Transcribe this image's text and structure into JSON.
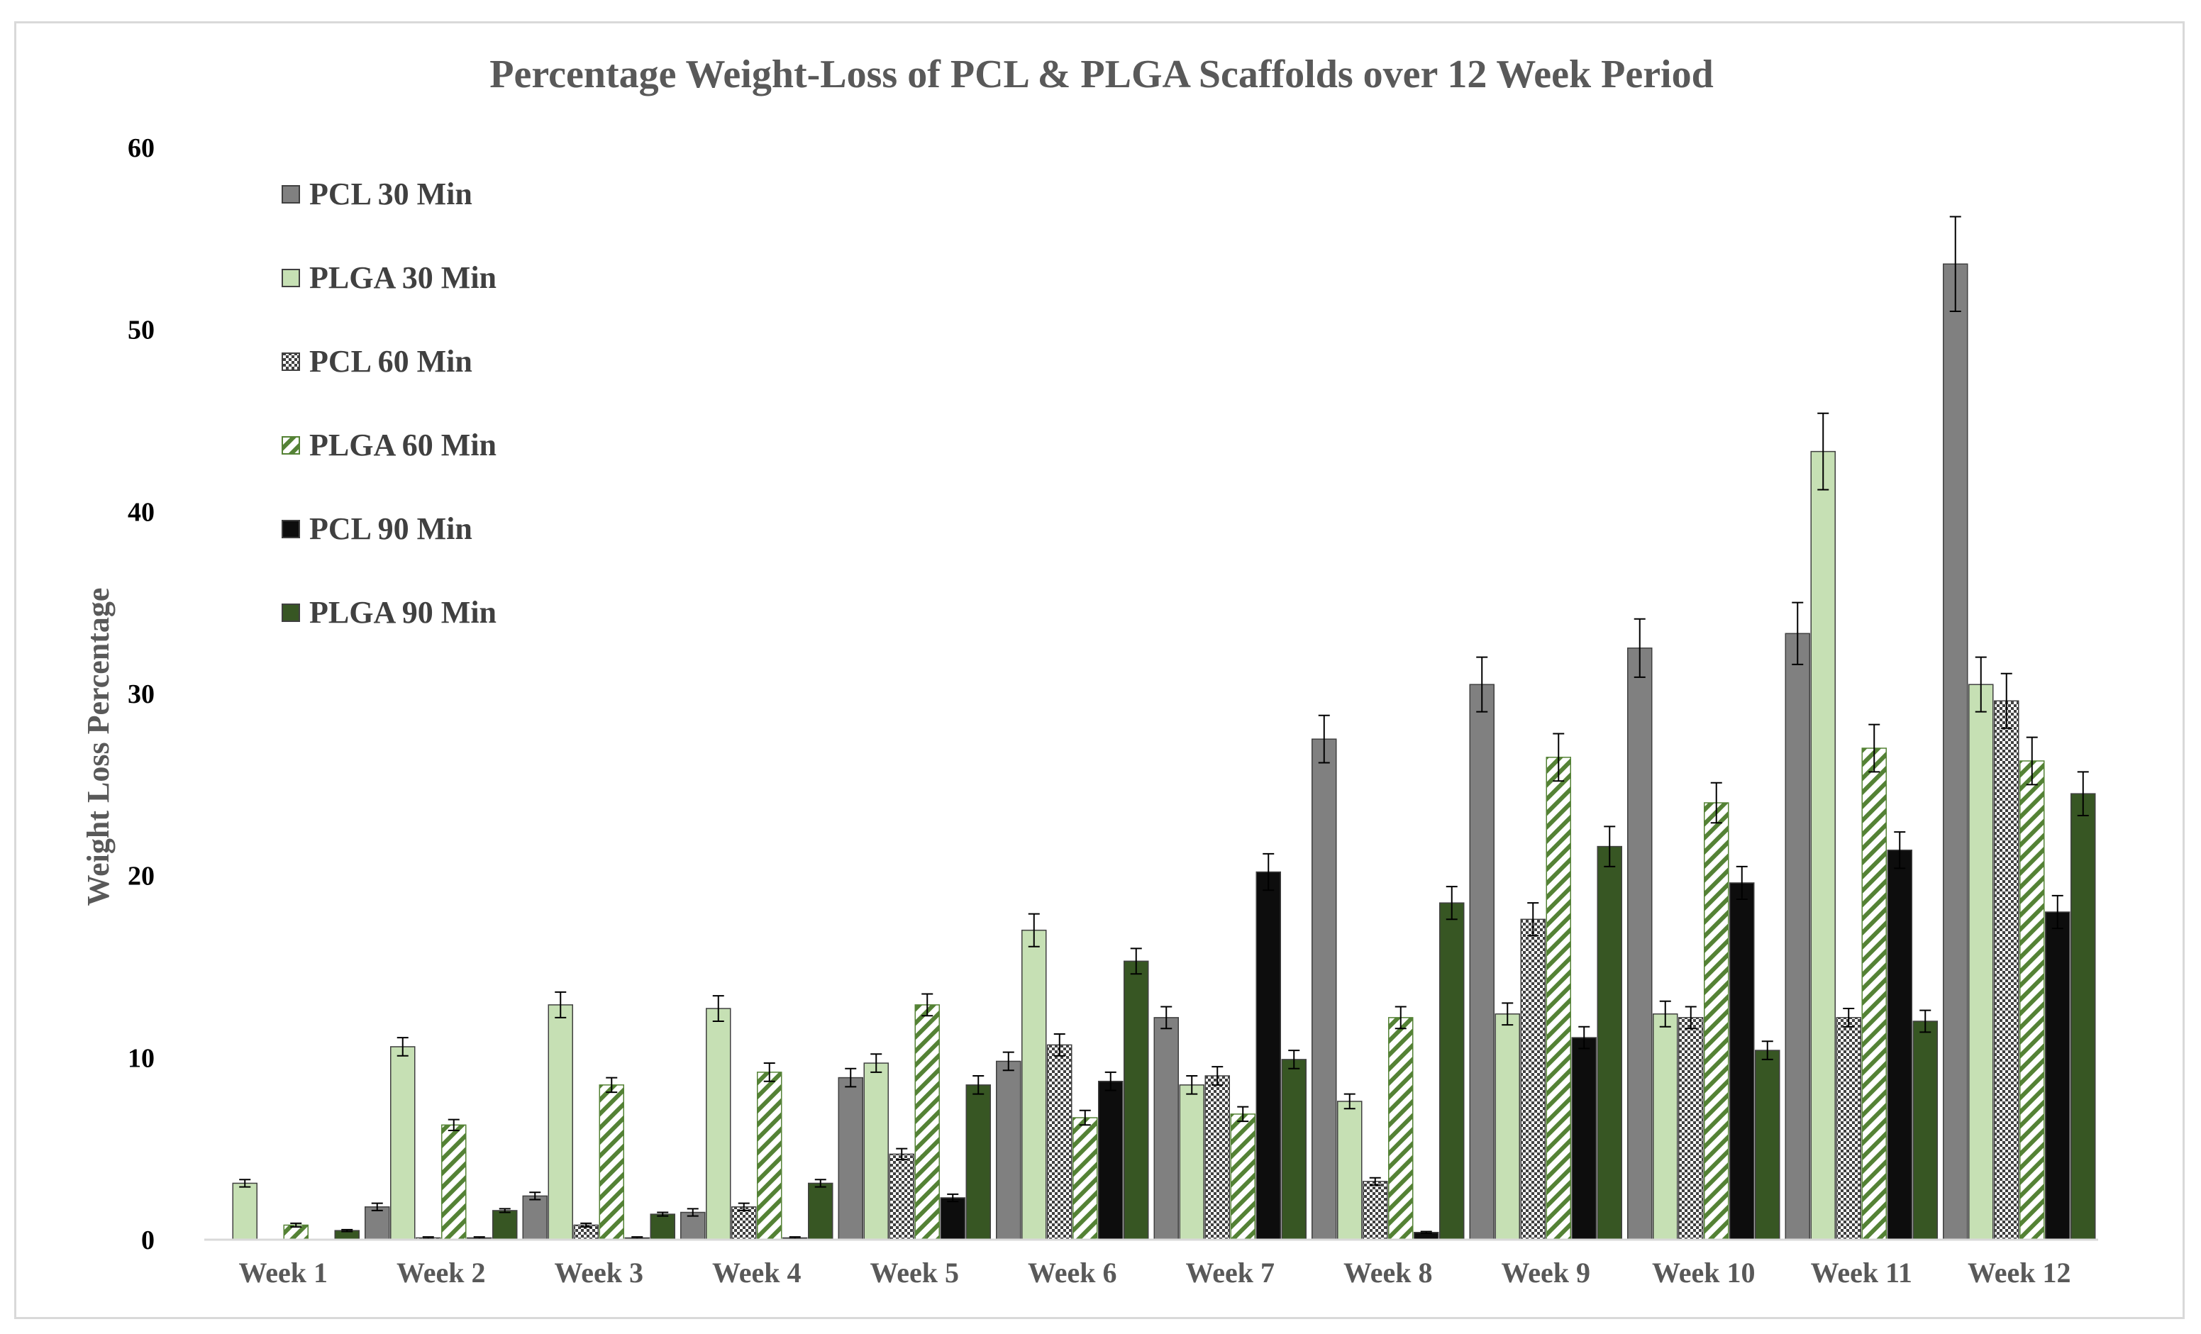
{
  "chart_data": {
    "type": "bar",
    "title": "Percentage Weight-Loss of PCL & PLGA Scaffolds over 12 Week Period",
    "xlabel": "",
    "ylabel": "Weight Loss Percentage",
    "ylim": [
      0,
      60
    ],
    "yticks": [
      "0",
      "10",
      "20",
      "30",
      "40",
      "50",
      "60"
    ],
    "grid": false,
    "legend_position": "top-left",
    "categories": [
      "Week 1",
      "Week 2",
      "Week 3",
      "Week 4",
      "Week 5",
      "Week 6",
      "Week 7",
      "Week 8",
      "Week 9",
      "Week 10",
      "Week 11",
      "Week 12"
    ],
    "series": [
      {
        "name": "PCL 30 Min",
        "color": "#808080",
        "pattern": "solid",
        "values": [
          0,
          1.8,
          2.4,
          1.5,
          8.9,
          9.8,
          12.2,
          27.5,
          30.5,
          32.5,
          33.3,
          53.6
        ],
        "errors": [
          0,
          0.2,
          0.2,
          0.2,
          0.5,
          0.5,
          0.6,
          1.3,
          1.5,
          1.6,
          1.7,
          2.6
        ]
      },
      {
        "name": "PLGA 30 Min",
        "color": "#c6e0b4",
        "pattern": "solid",
        "values": [
          3.1,
          10.6,
          12.9,
          12.7,
          9.7,
          17.0,
          8.5,
          7.6,
          12.4,
          12.4,
          43.3,
          30.5
        ],
        "errors": [
          0.2,
          0.5,
          0.7,
          0.7,
          0.5,
          0.9,
          0.5,
          0.4,
          0.6,
          0.7,
          2.1,
          1.5
        ]
      },
      {
        "name": "PCL 60 Min",
        "color": "#808080",
        "pattern": "checker",
        "values": [
          0,
          0.1,
          0.8,
          1.8,
          4.7,
          10.7,
          9.0,
          3.2,
          17.6,
          12.2,
          12.2,
          29.6
        ],
        "errors": [
          0,
          0.05,
          0.1,
          0.2,
          0.3,
          0.6,
          0.5,
          0.2,
          0.9,
          0.6,
          0.5,
          1.5
        ]
      },
      {
        "name": "PLGA 60 Min",
        "color": "#548235",
        "pattern": "diagonal",
        "values": [
          0.8,
          6.3,
          8.5,
          9.2,
          12.9,
          6.7,
          6.9,
          12.2,
          26.5,
          24.0,
          27.0,
          26.3
        ],
        "errors": [
          0.1,
          0.3,
          0.4,
          0.5,
          0.6,
          0.4,
          0.4,
          0.6,
          1.3,
          1.1,
          1.3,
          1.3
        ]
      },
      {
        "name": "PCL 90 Min",
        "color": "#0d0d0d",
        "pattern": "solid",
        "values": [
          0,
          0.1,
          0.1,
          0.1,
          2.3,
          8.7,
          20.2,
          0.4,
          11.1,
          19.6,
          21.4,
          18.0
        ],
        "errors": [
          0,
          0.05,
          0.05,
          0.05,
          0.2,
          0.5,
          1.0,
          0.05,
          0.6,
          0.9,
          1.0,
          0.9
        ]
      },
      {
        "name": "PLGA 90 Min",
        "color": "#375623",
        "pattern": "solid",
        "values": [
          0.5,
          1.6,
          1.4,
          3.1,
          8.5,
          15.3,
          9.9,
          18.5,
          21.6,
          10.4,
          12.0,
          24.5
        ],
        "errors": [
          0.05,
          0.1,
          0.1,
          0.2,
          0.5,
          0.7,
          0.5,
          0.9,
          1.1,
          0.5,
          0.6,
          1.2
        ]
      }
    ]
  }
}
